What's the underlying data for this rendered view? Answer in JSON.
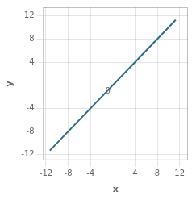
{
  "chart_data": {
    "type": "line",
    "xlabel": "x",
    "ylabel": "y",
    "x": [
      -11.3,
      11.3
    ],
    "values": [
      -11.3,
      11.3
    ],
    "color": "#2e6b8a",
    "xlim": [
      -12.5,
      13.5
    ],
    "ylim": [
      -13,
      13.5
    ],
    "xticks": [
      -12,
      -8,
      -4,
      4,
      8,
      12
    ],
    "yticks": [
      -12,
      -8,
      -4,
      4,
      8,
      12
    ],
    "annotations": [
      {
        "text": "0",
        "x": 0,
        "y": 0
      }
    ],
    "grid": true
  }
}
